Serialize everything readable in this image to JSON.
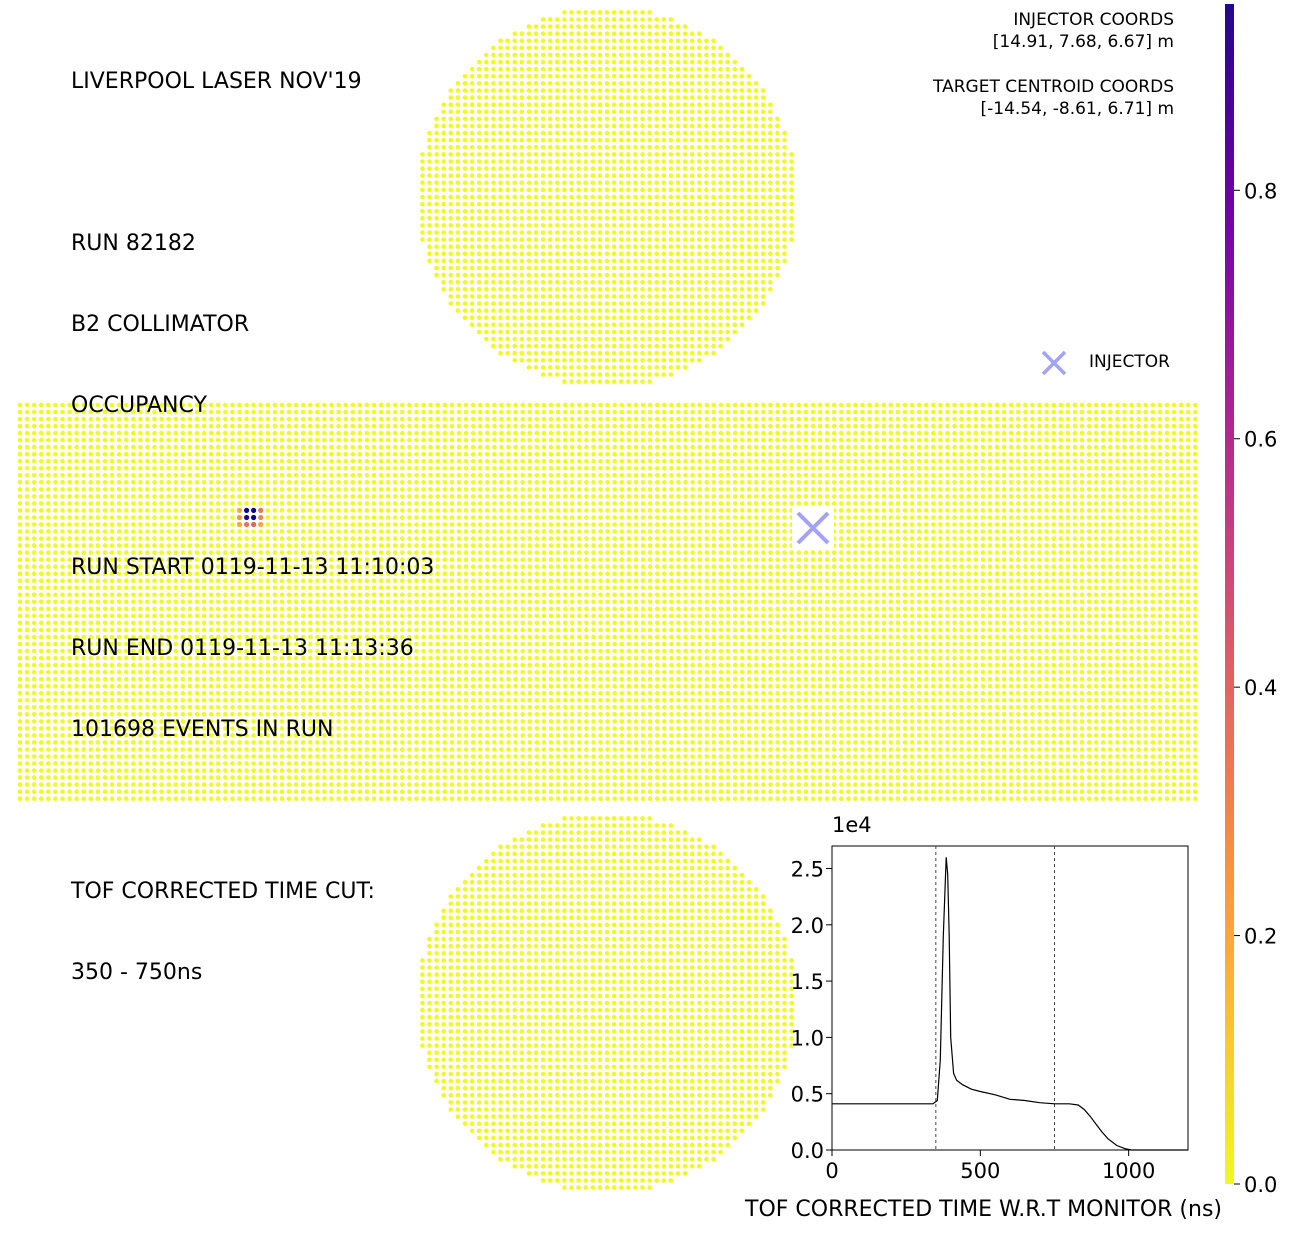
{
  "info": {
    "title": "LIVERPOOL LASER NOV'19",
    "run": "RUN 82182",
    "collimator": "B2 COLLIMATOR",
    "mode": "OCCUPANCY",
    "run_start": "RUN START 0119-11-13 11:10:03",
    "run_end": "RUN END 0119-11-13 11:13:36",
    "events": "101698 EVENTS IN RUN",
    "cut_label": "TOF CORRECTED TIME CUT:",
    "cut_range": "350 - 750ns"
  },
  "coords": {
    "injector_label": "INJECTOR COORDS",
    "injector_value": "[14.91, 7.68, 6.67] m",
    "target_label": "TARGET CENTROID COORDS",
    "target_value": "[-14.54, -8.61, 6.71] m"
  },
  "legend": {
    "label": "INJECTOR",
    "color": "#a3a3f5"
  },
  "colors": {
    "low": "#f0f921",
    "high": "#0d0887"
  },
  "chart_data": [
    {
      "type": "heatmap",
      "description_of_values": "PMT occupancy on unrolled barrel and end caps",
      "colorbar": {
        "range": [
          0.0,
          0.95
        ],
        "ticks": [
          "0.0",
          "0.2",
          "0.4",
          "0.6",
          "0.8"
        ],
        "colormap": "plasma_r"
      },
      "hotspot": {
        "region": "barrel",
        "values": [
          [
            0.2,
            1.0,
            1.0,
            0.35
          ],
          [
            0.25,
            0.95,
            1.0,
            0.3
          ],
          [
            0.2,
            0.35,
            0.4,
            0.2
          ]
        ]
      },
      "injector_marker": "INJECTOR"
    },
    {
      "type": "line",
      "xlabel": "TOF CORRECTED TIME W.R.T MONITOR (ns)",
      "ylabel": "",
      "y_scale_label": "1e4",
      "xlim": [
        0,
        1200
      ],
      "ylim": [
        0,
        2.7
      ],
      "xticks": [
        "0",
        "500",
        "1000"
      ],
      "yticks": [
        "0.0",
        "0.5",
        "1.0",
        "1.5",
        "2.0",
        "2.5"
      ],
      "cut_lines": [
        350,
        750
      ],
      "x": [
        0,
        100,
        200,
        300,
        340,
        355,
        365,
        375,
        385,
        390,
        395,
        400,
        410,
        420,
        440,
        470,
        500,
        550,
        600,
        650,
        700,
        750,
        800,
        830,
        850,
        870,
        890,
        910,
        930,
        960,
        990,
        1010,
        1050,
        1100,
        1200
      ],
      "y": [
        0.41,
        0.41,
        0.41,
        0.41,
        0.41,
        0.44,
        0.8,
        1.9,
        2.6,
        2.45,
        1.9,
        1.0,
        0.68,
        0.62,
        0.58,
        0.54,
        0.52,
        0.49,
        0.45,
        0.44,
        0.42,
        0.41,
        0.41,
        0.4,
        0.36,
        0.3,
        0.23,
        0.16,
        0.1,
        0.04,
        0.01,
        0.0,
        0.0,
        0.0,
        0.0
      ]
    }
  ]
}
